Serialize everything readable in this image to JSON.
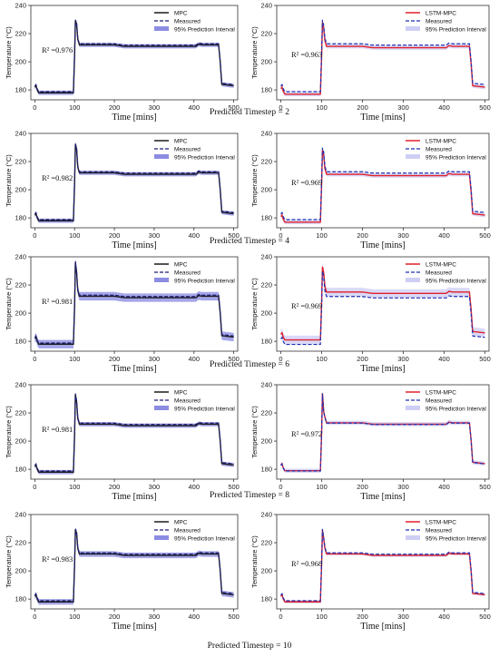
{
  "rows": [
    {
      "caption": "Predicted Timestep = 2"
    },
    {
      "caption": "Predicted Timestep = 4"
    },
    {
      "caption": "Predicted Timestep = 6"
    },
    {
      "caption": "Predicted Timestep = 8"
    },
    {
      "caption": "Predicted Timestep = 10"
    }
  ],
  "chart_data": [
    {
      "type": "line",
      "row": 0,
      "side": "left",
      "model": "MPC",
      "r2": "R² =0.976",
      "xlabel": "Time [mins]",
      "ylabel": "Temperature (°C)",
      "xlim": [
        -10,
        510
      ],
      "ylim": [
        173,
        240
      ],
      "xticks": [
        0,
        100,
        200,
        300,
        400,
        500
      ],
      "yticks": [
        180,
        200,
        220,
        240
      ],
      "legend": [
        "MPC",
        "Measured",
        "95% Prediction Interval"
      ],
      "legend_position": "top-right",
      "measured_color": "#1f1f7a",
      "pred_color": "#1a1a1a",
      "band_color": "#5b5bd6",
      "band_half": 1.5,
      "pred_offset": 0,
      "peak": 229,
      "settle_peak": 227
    },
    {
      "type": "line",
      "row": 0,
      "side": "right",
      "model": "LSTM-MPC",
      "r2": "R² =0.963",
      "xlabel": "Time [mins]",
      "ylabel": "Temperature (°C)",
      "xlim": [
        -10,
        510
      ],
      "ylim": [
        173,
        240
      ],
      "xticks": [
        0,
        100,
        200,
        300,
        400,
        500
      ],
      "yticks": [
        180,
        200,
        220,
        240
      ],
      "legend": [
        "LSTM-MPC",
        "Measured",
        "95% Prediction Interval"
      ],
      "legend_position": "top-right",
      "measured_color": "#1f2fb0",
      "pred_color": "#e0202a",
      "band_color": "#b9b9f0",
      "band_half": 1.5,
      "pred_offset": -1,
      "peak": 229,
      "settle_peak": 225
    },
    {
      "type": "line",
      "row": 1,
      "side": "left",
      "model": "MPC",
      "r2": "R² =0.982",
      "xlabel": "Time [mins]",
      "ylabel": "Temperature (°C)",
      "xlim": [
        -10,
        510
      ],
      "ylim": [
        173,
        240
      ],
      "xticks": [
        0,
        100,
        200,
        300,
        400,
        500
      ],
      "yticks": [
        180,
        200,
        220,
        240
      ],
      "legend": [
        "MPC",
        "Measured",
        "95% Prediction Interval"
      ],
      "legend_position": "top-right",
      "measured_color": "#1f1f7a",
      "pred_color": "#1a1a1a",
      "band_color": "#5b5bd6",
      "band_half": 1.5,
      "pred_offset": 0,
      "peak": 232,
      "settle_peak": 229
    },
    {
      "type": "line",
      "row": 1,
      "side": "right",
      "model": "LSTM-MPC",
      "r2": "R² =0.969",
      "xlabel": "Time [mins]",
      "ylabel": "Temperature (°C)",
      "xlim": [
        -10,
        510
      ],
      "ylim": [
        173,
        240
      ],
      "xticks": [
        0,
        100,
        200,
        300,
        400,
        500
      ],
      "yticks": [
        180,
        200,
        220,
        240
      ],
      "legend": [
        "LSTM-MPC",
        "Measured",
        "95% Prediction Interval"
      ],
      "legend_position": "top-right",
      "measured_color": "#1f2fb0",
      "pred_color": "#e0202a",
      "band_color": "#b9b9f0",
      "band_half": 1.5,
      "pred_offset": -1,
      "peak": 229,
      "settle_peak": 226
    },
    {
      "type": "line",
      "row": 2,
      "side": "left",
      "model": "MPC",
      "r2": "R² =0.981",
      "xlabel": "Time [mins]",
      "ylabel": "Temperature (°C)",
      "xlim": [
        -10,
        510
      ],
      "ylim": [
        173,
        240
      ],
      "xticks": [
        0,
        100,
        200,
        300,
        400,
        500
      ],
      "yticks": [
        180,
        200,
        220,
        240
      ],
      "legend": [
        "MPC",
        "Measured",
        "95% Prediction Interval"
      ],
      "legend_position": "top-right",
      "measured_color": "#1f1f7a",
      "pred_color": "#1a1a1a",
      "band_color": "#5b5bd6",
      "band_half": 3,
      "pred_offset": 0,
      "peak": 236,
      "settle_peak": 229
    },
    {
      "type": "line",
      "row": 2,
      "side": "right",
      "model": "LSTM-MPC",
      "r2": "R² =0.969",
      "xlabel": "Time [mins]",
      "ylabel": "Temperature (°C)",
      "xlim": [
        -10,
        510
      ],
      "ylim": [
        173,
        240
      ],
      "xticks": [
        0,
        100,
        200,
        300,
        400,
        500
      ],
      "yticks": [
        180,
        200,
        220,
        240
      ],
      "legend": [
        "LSTM-MPC",
        "Measured",
        "95% Prediction Interval"
      ],
      "legend_position": "top-right",
      "measured_color": "#1f2fb0",
      "pred_color": "#e0202a",
      "band_color": "#b9b9f0",
      "band_half": 3,
      "pred_offset": 3,
      "peak": 230,
      "settle_peak": 226
    },
    {
      "type": "line",
      "row": 3,
      "side": "left",
      "model": "MPC",
      "r2": "R² =0.981",
      "xlabel": "Time [mins]",
      "ylabel": "Temperature (°C)",
      "xlim": [
        -10,
        510
      ],
      "ylim": [
        173,
        240
      ],
      "xticks": [
        0,
        100,
        200,
        300,
        400,
        500
      ],
      "yticks": [
        180,
        200,
        220,
        240
      ],
      "legend": [
        "MPC",
        "Measured",
        "95% Prediction Interval"
      ],
      "legend_position": "top-right",
      "measured_color": "#1f1f7a",
      "pred_color": "#1a1a1a",
      "band_color": "#5b5bd6",
      "band_half": 1.5,
      "pred_offset": 0,
      "peak": 233,
      "settle_peak": 228
    },
    {
      "type": "line",
      "row": 3,
      "side": "right",
      "model": "LSTM-MPC",
      "r2": "R² =0.972",
      "xlabel": "Time [mins]",
      "ylabel": "Temperature (°C)",
      "xlim": [
        -10,
        510
      ],
      "ylim": [
        173,
        240
      ],
      "xticks": [
        0,
        100,
        200,
        300,
        400,
        500
      ],
      "yticks": [
        180,
        200,
        220,
        240
      ],
      "legend": [
        "LSTM-MPC",
        "Measured",
        "95% Prediction Interval"
      ],
      "legend_position": "top-right",
      "measured_color": "#1f2fb0",
      "pred_color": "#e0202a",
      "band_color": "#b9b9f0",
      "band_half": 1.5,
      "pred_offset": 1,
      "peak": 233,
      "settle_peak": 220
    },
    {
      "type": "line",
      "row": 4,
      "side": "left",
      "model": "MPC",
      "r2": "R² =0.983",
      "xlabel": "Time [mins]",
      "ylabel": "Temperature (°C)",
      "xlim": [
        -10,
        510
      ],
      "ylim": [
        173,
        240
      ],
      "xticks": [
        0,
        100,
        200,
        300,
        400,
        500
      ],
      "yticks": [
        180,
        200,
        220,
        240
      ],
      "legend": [
        "MPC",
        "Measured",
        "95% Prediction Interval"
      ],
      "legend_position": "top-right",
      "measured_color": "#1f1f7a",
      "pred_color": "#1a1a1a",
      "band_color": "#5b5bd6",
      "band_half": 2,
      "pred_offset": 0,
      "peak": 229,
      "settle_peak": 227
    },
    {
      "type": "line",
      "row": 4,
      "side": "right",
      "model": "LSTM-MPC",
      "r2": "R² =0.968",
      "xlabel": "Time [mins]",
      "ylabel": "Temperature (°C)",
      "xlim": [
        -10,
        510
      ],
      "ylim": [
        173,
        240
      ],
      "xticks": [
        0,
        100,
        200,
        300,
        400,
        500
      ],
      "yticks": [
        180,
        200,
        220,
        240
      ],
      "legend": [
        "LSTM-MPC",
        "Measured",
        "95% Prediction Interval"
      ],
      "legend_position": "top-right",
      "measured_color": "#1f2fb0",
      "pred_color": "#e0202a",
      "band_color": "#b9b9f0",
      "band_half": 1,
      "pred_offset": 0,
      "peak": 229,
      "settle_peak": 223
    }
  ]
}
